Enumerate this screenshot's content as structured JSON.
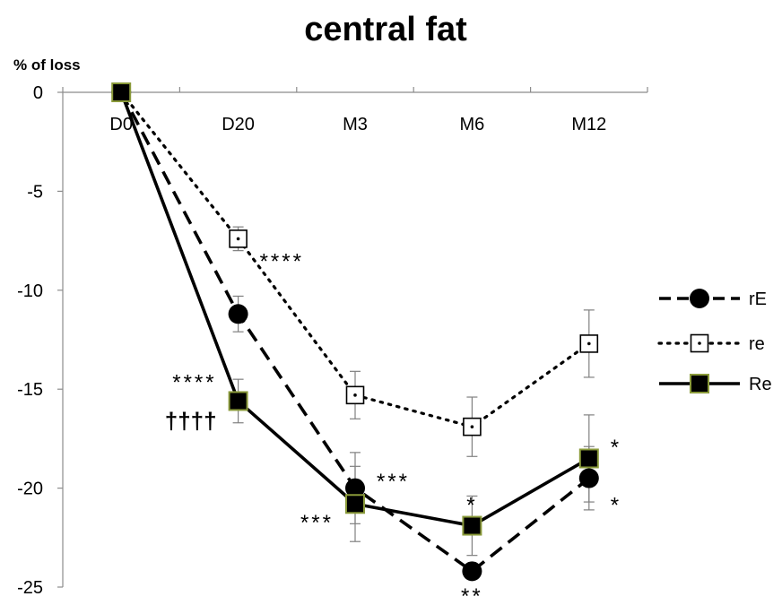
{
  "chart_data": {
    "type": "line",
    "title": "central fat",
    "ylabel": "% of loss",
    "xlabel": "",
    "categories": [
      "D0",
      "D20",
      "M3",
      "M6",
      "M12"
    ],
    "ylim": [
      -25,
      0
    ],
    "yticks": [
      0,
      -5,
      -10,
      -15,
      -20,
      -25
    ],
    "grid": false,
    "legend_position": "right",
    "series": [
      {
        "name": "rE",
        "values": [
          0,
          -11.2,
          -20.0,
          -24.2,
          -19.5
        ],
        "error": [
          0,
          0.9,
          1.8,
          0,
          1.6
        ],
        "line_style": "dashed",
        "marker": "circle",
        "color": "#000000"
      },
      {
        "name": "re",
        "values": [
          0,
          -7.4,
          -15.3,
          -16.9,
          -12.7
        ],
        "error": [
          0,
          0.6,
          1.2,
          1.5,
          1.7
        ],
        "line_style": "dotted",
        "marker": "open-square",
        "color": "#000000"
      },
      {
        "name": "Re",
        "values": [
          0,
          -15.6,
          -20.8,
          -21.9,
          -18.5
        ],
        "error": [
          0,
          1.1,
          1.9,
          1.5,
          2.2
        ],
        "line_style": "solid",
        "marker": "filled-square",
        "color": "#000000",
        "marker_edge_color": "#8a9a3a"
      }
    ],
    "annotations": [
      {
        "text": "****",
        "category": "D20",
        "y": -8.5,
        "side": "right"
      },
      {
        "text": "****",
        "category": "D20",
        "y": -14.6,
        "side": "left"
      },
      {
        "text": "††††",
        "category": "D20",
        "y": -16.6,
        "side": "left",
        "style": "dagger"
      },
      {
        "text": "***",
        "category": "M3",
        "y": -19.6,
        "side": "right"
      },
      {
        "text": "***",
        "category": "M3",
        "y": -21.7,
        "side": "left"
      },
      {
        "text": "*",
        "category": "M6",
        "y": -20.8,
        "side": "center"
      },
      {
        "text": "**",
        "category": "M6",
        "y": -25.4,
        "side": "center"
      },
      {
        "text": "*",
        "category": "M12",
        "y": -17.9,
        "side": "right"
      },
      {
        "text": "*",
        "category": "M12",
        "y": -20.8,
        "side": "right"
      }
    ]
  }
}
